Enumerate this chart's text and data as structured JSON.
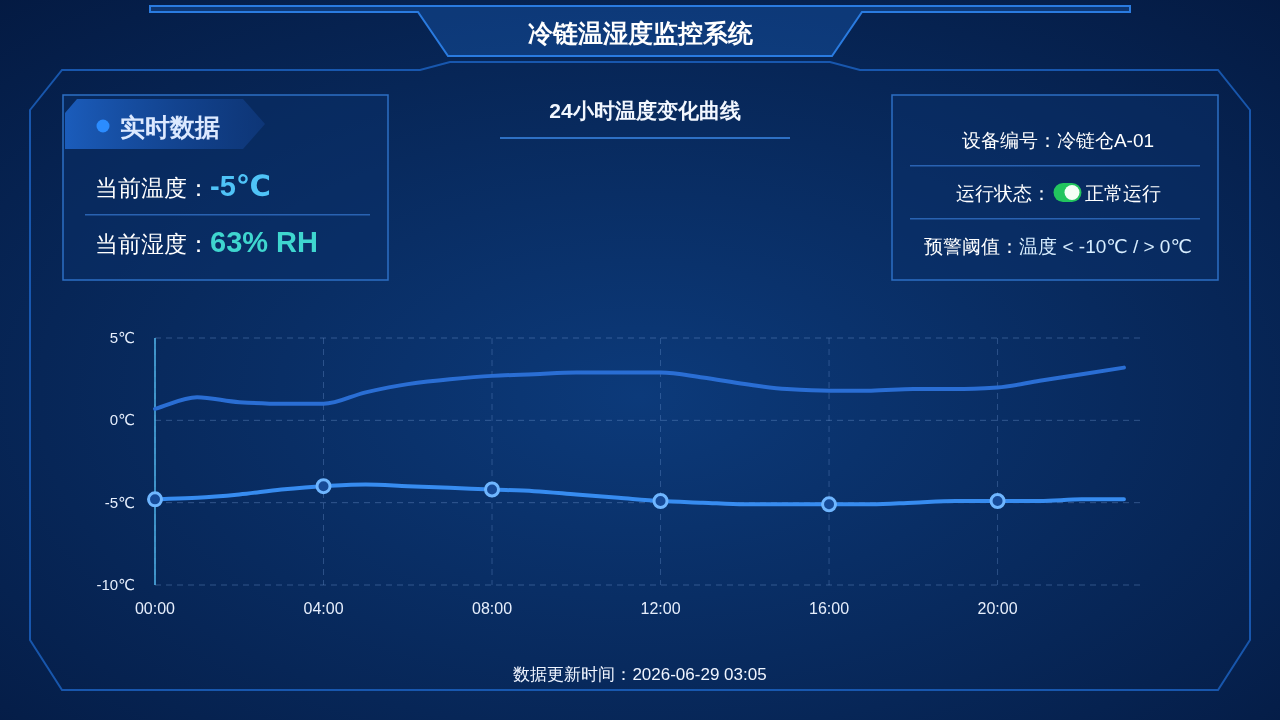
{
  "chart_data": [
    {
      "type": "line",
      "title": "冷链温湿度监控系统",
      "subtitle": "24小时温度变化曲线",
      "x": [
        0,
        1,
        2,
        3,
        4,
        5,
        6,
        7,
        8,
        9,
        10,
        11,
        12,
        13,
        14,
        15,
        16,
        17,
        18,
        19,
        20,
        21,
        22,
        23
      ],
      "xlim": [
        0,
        23.5
      ],
      "xticks": [
        {
          "value": 0,
          "label": "00:00"
        },
        {
          "value": 4,
          "label": "04:00"
        },
        {
          "value": 8,
          "label": "08:00"
        },
        {
          "value": 12,
          "label": "12:00"
        },
        {
          "value": 16,
          "label": "16:00"
        },
        {
          "value": 20,
          "label": "20:00"
        }
      ],
      "ylim": [
        -10,
        5
      ],
      "yticks": [
        {
          "value": 5,
          "label": "5℃"
        },
        {
          "value": 0,
          "label": "0℃"
        },
        {
          "value": -5,
          "label": "-5℃"
        },
        {
          "value": -10,
          "label": "-10℃"
        }
      ],
      "grid": true,
      "series": [
        {
          "color": "#2a6ed4",
          "values": [
            0.7,
            1.4,
            1.1,
            1.0,
            1.0,
            1.7,
            2.2,
            2.5,
            2.7,
            2.8,
            2.9,
            2.9,
            2.9,
            2.6,
            2.2,
            1.9,
            1.8,
            1.8,
            1.9,
            1.9,
            2.0,
            2.4,
            2.8,
            3.2
          ]
        },
        {
          "color": "#378cf0",
          "values": [
            -4.8,
            -4.7,
            -4.5,
            -4.2,
            -4.0,
            -3.9,
            -4.0,
            -4.1,
            -4.2,
            -4.3,
            -4.5,
            -4.7,
            -4.9,
            -5.0,
            -5.1,
            -5.1,
            -5.1,
            -5.1,
            -5.0,
            -4.9,
            -4.9,
            -4.9,
            -4.8,
            -4.8
          ]
        },
        {
          "type": "scatter",
          "color": "#6fb6ff",
          "marker": "circle",
          "x": [
            0,
            4,
            8,
            12,
            16,
            20
          ],
          "values": [
            -4.8,
            -4.0,
            -4.2,
            -4.9,
            -5.1,
            -4.9
          ]
        }
      ],
      "annotations": [
        "数据更新时间：2026-06-29 03:05"
      ]
    },
    {
      "type": "other",
      "title": "实时数据",
      "annotations": [
        "当前温度：-5℃",
        "当前湿度：63% RH"
      ]
    },
    {
      "type": "other",
      "annotations": [
        "设备编号：冷链仓A-01",
        "运行状态：正常运行",
        "预警阈值：温度 < -10℃ / > 0℃"
      ]
    }
  ]
}
